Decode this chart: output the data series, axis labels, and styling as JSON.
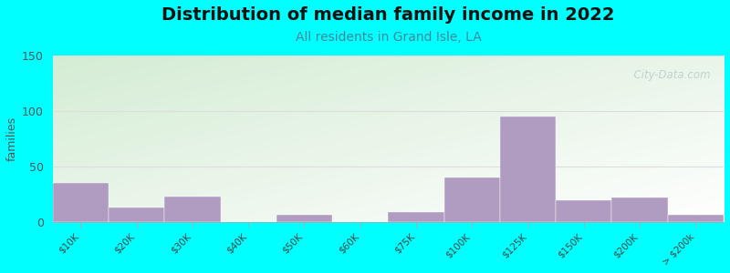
{
  "title": "Distribution of median family income in 2022",
  "subtitle": "All residents in Grand Isle, LA",
  "ylabel": "families",
  "background_outer": "#00FFFF",
  "bar_color": "#b09cc0",
  "title_fontsize": 14,
  "subtitle_fontsize": 10,
  "subtitle_color": "#448899",
  "ylabel_color": "#555555",
  "categories": [
    "$10K",
    "$20K",
    "$30K",
    "$40K",
    "$50K",
    "$60K",
    "$75K",
    "$100K",
    "$125K",
    "$150K",
    "$200K",
    "> $200k"
  ],
  "values": [
    35,
    13,
    23,
    0,
    7,
    0,
    9,
    40,
    95,
    20,
    22,
    7
  ],
  "ylim": [
    0,
    150
  ],
  "yticks": [
    0,
    50,
    100,
    150
  ],
  "watermark": "  City-Data.com",
  "grid_color": "#dddddd",
  "bg_left_top": "#d4ecd4",
  "bg_right_bottom": "#ffffff"
}
